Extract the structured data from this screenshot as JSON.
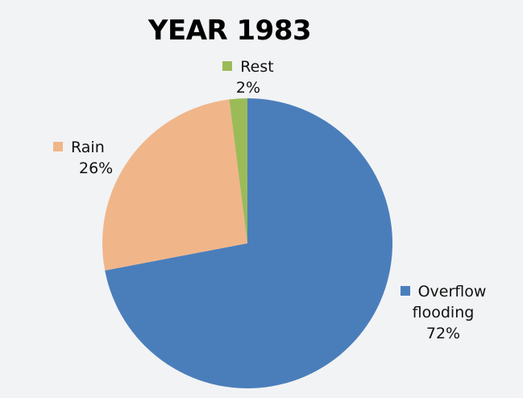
{
  "chart_data": {
    "type": "pie",
    "title": "YEAR 1983",
    "categories": [
      "Overflow flooding",
      "Rain",
      "Rest"
    ],
    "values": [
      72,
      26,
      2
    ],
    "unit": "%",
    "colors": [
      "#4a7ebb",
      "#f0b68a",
      "#9bbb59"
    ],
    "data_labels": [
      "72%",
      "26%",
      "2%"
    ],
    "legend_position": "inline labels"
  },
  "labels": {
    "overflow_name_1": "Overflow",
    "overflow_name_2": "flooding",
    "overflow_pct": "72%",
    "rain_name": "Rain",
    "rain_pct": "26%",
    "rest_name": "Rest",
    "rest_pct": "2%"
  }
}
